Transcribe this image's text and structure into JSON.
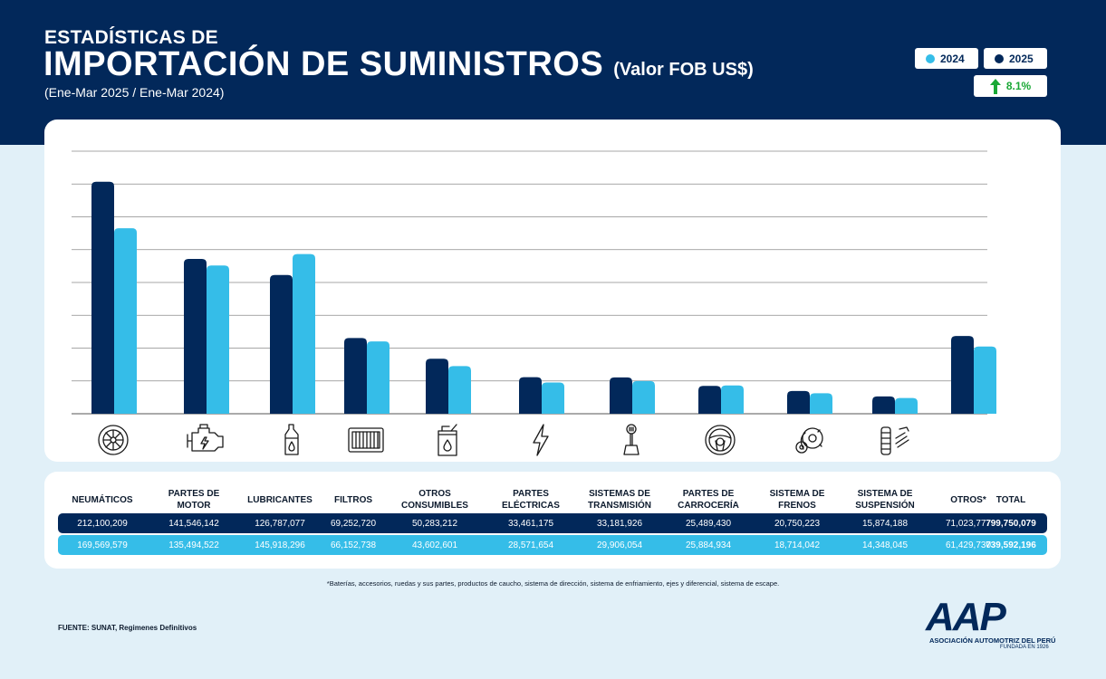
{
  "header": {
    "title_line1": "ESTADÍSTICAS DE",
    "title_line2": "IMPORTACIÓN DE SUMINISTROS",
    "title_unit": "(Valor FOB US$)",
    "period": "(Ene-Mar 2025 / Ene-Mar 2024)"
  },
  "legend": {
    "year_2024": "2024",
    "year_2025": "2025",
    "growth": "8.1%"
  },
  "colors": {
    "dark_navy": "#02285a",
    "light_blue": "#35bde8",
    "growth_green": "#1aa836"
  },
  "chart_data": {
    "type": "bar",
    "categories": [
      "NEUMÁTICOS",
      "PARTES DE MOTOR",
      "LUBRICANTES",
      "FILTROS",
      "OTROS CONSUMIBLES",
      "PARTES ELÉCTRICAS",
      "SISTEMAS DE TRANSMISIÓN",
      "PARTES DE CARROCERÍA",
      "SISTEMA DE FRENOS",
      "SISTEMA DE SUSPENSIÓN",
      "OTROS*"
    ],
    "category_icons": [
      "tire-icon",
      "engine-icon",
      "oil-bottle-icon",
      "filter-icon",
      "jerrycan-icon",
      "lightning-icon",
      "gear-shift-icon",
      "steering-wheel-icon",
      "brake-disc-icon",
      "suspension-icon",
      ""
    ],
    "series": [
      {
        "name": "2025",
        "color": "#02285a",
        "values": [
          212100209,
          141546142,
          126787077,
          69252720,
          50283212,
          33461175,
          33181926,
          25489430,
          20750223,
          15874188,
          71023777
        ]
      },
      {
        "name": "2024",
        "color": "#35bde8",
        "values": [
          169569579,
          135494522,
          145918296,
          66152738,
          43602601,
          28571654,
          29906054,
          25884934,
          18714042,
          14348045,
          61429730
        ]
      }
    ],
    "ylim": [
      0,
      240000000
    ],
    "grid": true
  },
  "table": {
    "headers": [
      "NEUMÁTICOS",
      "PARTES DE MOTOR",
      "LUBRICANTES",
      "FILTROS",
      "OTROS CONSUMIBLES",
      "PARTES ELÉCTRICAS",
      "SISTEMAS DE TRANSMISIÓN",
      "PARTES DE CARROCERÍA",
      "SISTEMA DE FRENOS",
      "SISTEMA DE SUSPENSIÓN",
      "OTROS*",
      "TOTAL"
    ],
    "row_2025": [
      "212,100,209",
      "141,546,142",
      "126,787,077",
      "69,252,720",
      "50,283,212",
      "33,461,175",
      "33,181,926",
      "25,489,430",
      "20,750,223",
      "15,874,188",
      "71,023,777",
      "799,750,079"
    ],
    "row_2024": [
      "169,569,579",
      "135,494,522",
      "145,918,296",
      "66,152,738",
      "43,602,601",
      "28,571,654",
      "29,906,054",
      "25,884,934",
      "18,714,042",
      "14,348,045",
      "61,429,730",
      "739,592,196"
    ]
  },
  "footnote": "*Baterías, accesorios, ruedas y sus partes, productos de caucho, sistema de dirección, sistema de enfriamiento, ejes y diferencial, sistema de escape.",
  "source": "FUENTE: SUNAT, Regimenes Definitivos",
  "logo": {
    "name": "AAP",
    "subtitle": "ASOCIACIÓN AUTOMOTRIZ DEL PERÚ",
    "founded": "FUNDADA EN 1926"
  }
}
